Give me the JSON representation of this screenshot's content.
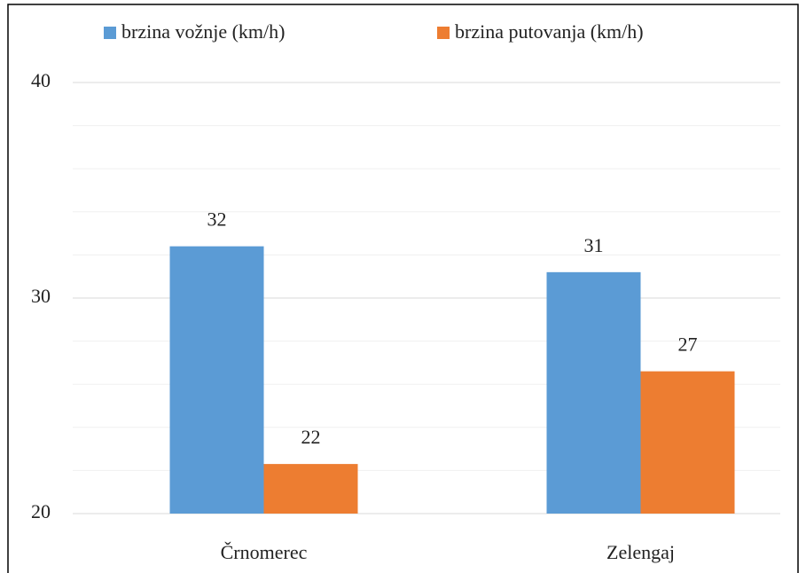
{
  "chart_data": {
    "type": "bar",
    "categories": [
      "Črnomerec",
      "Zelengaj"
    ],
    "series": [
      {
        "name": "brzina vožnje (km/h)",
        "color": "#5b9bd5",
        "values": [
          32.4,
          31.2
        ],
        "value_labels": [
          "32",
          "31"
        ]
      },
      {
        "name": "brzina putovanja  (km/h)",
        "color": "#ed7d31",
        "values": [
          22.3,
          26.6
        ],
        "value_labels": [
          "22",
          "27"
        ]
      }
    ],
    "ylim": [
      20,
      40
    ],
    "yticks": [
      20,
      30,
      40
    ],
    "minor_yticks": [
      22,
      24,
      26,
      28,
      32,
      34,
      36,
      38
    ],
    "grid": true,
    "legend": "top"
  }
}
